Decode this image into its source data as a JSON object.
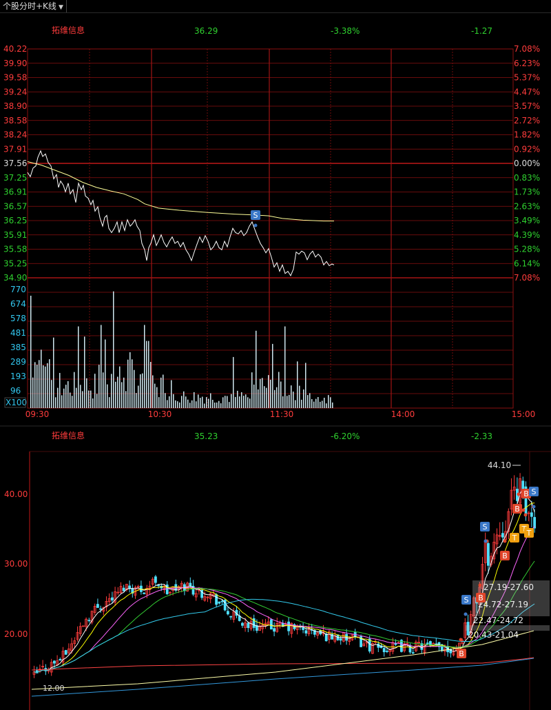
{
  "toolbar": {
    "menu_label": "个股分时+K线"
  },
  "intraday": {
    "header": {
      "name": "拓维信息",
      "price": "36.29",
      "pct": "-3.38%",
      "chg": "-1.27"
    },
    "price_labels": [
      "40.22",
      "39.90",
      "39.58",
      "39.24",
      "38.90",
      "38.58",
      "38.24",
      "37.91",
      "37.56",
      "37.25",
      "36.91",
      "36.57",
      "36.25",
      "35.91",
      "35.58",
      "35.25",
      "34.90"
    ],
    "pct_labels": [
      "7.08%",
      "6.23%",
      "5.37%",
      "4.47%",
      "3.57%",
      "2.72%",
      "1.82%",
      "0.92%",
      "0.00%",
      "0.83%",
      "1.73%",
      "2.63%",
      "3.49%",
      "4.39%",
      "5.28%",
      "6.14%",
      "7.08%"
    ],
    "volume_labels": [
      "770",
      "674",
      "578",
      "481",
      "385",
      "289",
      "193",
      "96"
    ],
    "volume_unit": "X100",
    "time_labels": [
      "09:30",
      "10:30",
      "11:30",
      "14:00",
      "15:00"
    ],
    "signal": "S",
    "colors": {
      "price_line": "#ffffff",
      "avg_line": "#ffff99",
      "grid": "#8b1010",
      "volume_bar": "#cfe8f0"
    }
  },
  "kline": {
    "header": {
      "name": "拓维信息",
      "price": "35.23",
      "pct": "-6.20%",
      "chg": "-2.33"
    },
    "price_labels": [
      "40.00",
      "30.00",
      "20.00"
    ],
    "high_label": "44.10",
    "low_label": "12.00",
    "ranges": [
      "27.19-27.60",
      "24.72-27.19",
      "22.47-24.72",
      "20.43-21.04"
    ],
    "markers": {
      "buy": [
        "B",
        "B",
        "B",
        "B",
        "B"
      ],
      "sell": [
        "S",
        "S",
        "S"
      ],
      "top": [
        "T",
        "T",
        "T"
      ]
    },
    "colors": {
      "up": "#ff3c3c",
      "down": "#4fe0ff",
      "ma5": "#ffffff",
      "ma10": "#ffff00",
      "ma20": "#ff66ff",
      "ma30": "#33cc33",
      "ma60": "#33ccee",
      "ma120": "#ff4444"
    }
  }
}
